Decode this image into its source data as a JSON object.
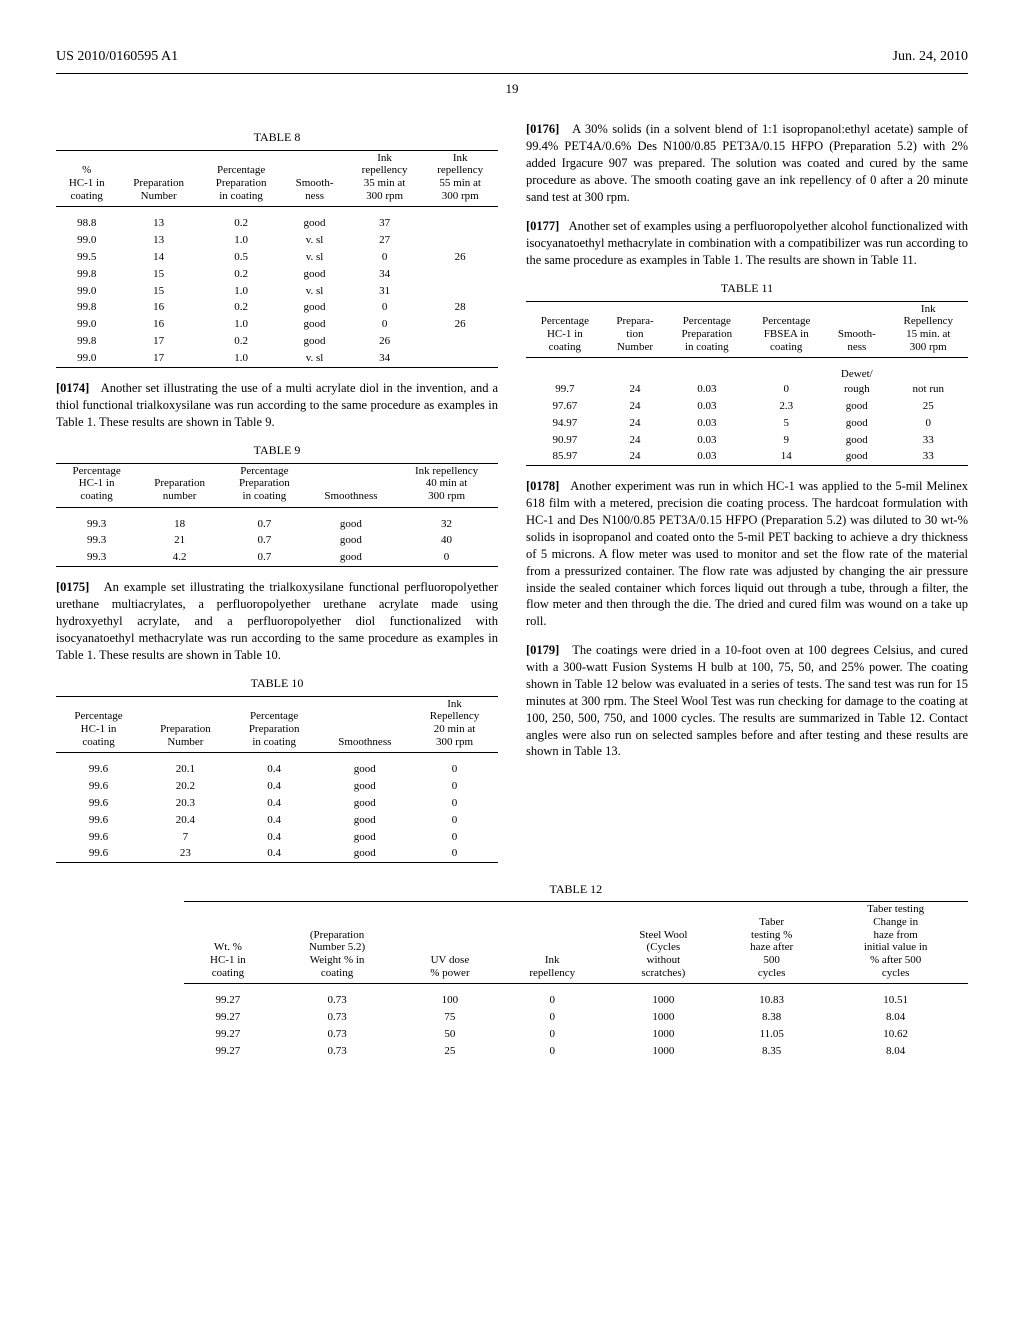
{
  "header": {
    "left": "US 2010/0160595 A1",
    "right": "Jun. 24, 2010"
  },
  "pagenum": "19",
  "table8": {
    "title": "TABLE 8",
    "headers": [
      "%\nHC-1 in\ncoating",
      "Preparation\nNumber",
      "Percentage\nPreparation\nin coating",
      "Smooth-\nness",
      "Ink\nrepellency\n35 min at\n300 rpm",
      "Ink\nrepellency\n55 min at\n300 rpm"
    ],
    "rows": [
      [
        "98.8",
        "13",
        "0.2",
        "good",
        "37",
        ""
      ],
      [
        "99.0",
        "13",
        "1.0",
        "v. sl",
        "27",
        ""
      ],
      [
        "99.5",
        "14",
        "0.5",
        "v. sl",
        "0",
        "26"
      ],
      [
        "99.8",
        "15",
        "0.2",
        "good",
        "34",
        ""
      ],
      [
        "99.0",
        "15",
        "1.0",
        "v. sl",
        "31",
        ""
      ],
      [
        "99.8",
        "16",
        "0.2",
        "good",
        "0",
        "28"
      ],
      [
        "99.0",
        "16",
        "1.0",
        "good",
        "0",
        "26"
      ],
      [
        "99.8",
        "17",
        "0.2",
        "good",
        "26",
        ""
      ],
      [
        "99.0",
        "17",
        "1.0",
        "v. sl",
        "34",
        ""
      ]
    ]
  },
  "para174": {
    "num": "[0174]",
    "text": "Another set illustrating the use of a multi acrylate diol in the invention, and a thiol functional trialkoxysilane was run according to the same procedure as examples in Table 1. These results are shown in Table 9."
  },
  "table9": {
    "title": "TABLE 9",
    "headers": [
      "Percentage\nHC-1 in\ncoating",
      "Preparation\nnumber",
      "Percentage\nPreparation\nin coating",
      "Smoothness",
      "Ink repellency\n40 min at\n300 rpm"
    ],
    "rows": [
      [
        "99.3",
        "18",
        "0.7",
        "good",
        "32"
      ],
      [
        "99.3",
        "21",
        "0.7",
        "good",
        "40"
      ],
      [
        "99.3",
        "4.2",
        "0.7",
        "good",
        "0"
      ]
    ]
  },
  "para175": {
    "num": "[0175]",
    "text": "An example set illustrating the trialkoxysilane functional perfluoropolyether urethane multiacrylates, a perfluoropolyether urethane acrylate made using hydroxyethyl acrylate, and a perfluoropolyether diol functionalized with isocyanatoethyl methacrylate was run according to the same procedure as examples in Table 1. These results are shown in Table 10."
  },
  "table10": {
    "title": "TABLE 10",
    "headers": [
      "Percentage\nHC-1 in\ncoating",
      "Preparation\nNumber",
      "Percentage\nPreparation\nin coating",
      "Smoothness",
      "Ink\nRepellency\n20 min at\n300 rpm"
    ],
    "rows": [
      [
        "99.6",
        "20.1",
        "0.4",
        "good",
        "0"
      ],
      [
        "99.6",
        "20.2",
        "0.4",
        "good",
        "0"
      ],
      [
        "99.6",
        "20.3",
        "0.4",
        "good",
        "0"
      ],
      [
        "99.6",
        "20.4",
        "0.4",
        "good",
        "0"
      ],
      [
        "99.6",
        "7",
        "0.4",
        "good",
        "0"
      ],
      [
        "99.6",
        "23",
        "0.4",
        "good",
        "0"
      ]
    ]
  },
  "para176": {
    "num": "[0176]",
    "text": "A 30% solids (in a solvent blend of 1:1 isopropanol:ethyl acetate) sample of 99.4% PET4A/0.6% Des N100/0.85 PET3A/0.15 HFPO (Preparation 5.2) with 2% added Irgacure 907 was prepared. The solution was coated and cured by the same procedure as above. The smooth coating gave an ink repellency of 0 after a 20 minute sand test at 300 rpm."
  },
  "para177": {
    "num": "[0177]",
    "text": "Another set of examples using a perfluoropolyether alcohol functionalized with isocyanatoethyl methacrylate in combination with a compatibilizer was run according to the same procedure as examples in Table 1. The results are shown in Table 11."
  },
  "table11": {
    "title": "TABLE 11",
    "headers": [
      "Percentage\nHC-1 in\ncoating",
      "Prepara-\ntion\nNumber",
      "Percentage\nPreparation\nin coating",
      "Percentage\nFBSEA in\ncoating",
      "Smooth-\nness",
      "Ink\nRepellency\n15 min. at\n300 rpm"
    ],
    "rows": [
      [
        "99.7",
        "24",
        "0.03",
        "0",
        "Dewet/\nrough",
        "not run"
      ],
      [
        "97.67",
        "24",
        "0.03",
        "2.3",
        "good",
        "25"
      ],
      [
        "94.97",
        "24",
        "0.03",
        "5",
        "good",
        "0"
      ],
      [
        "90.97",
        "24",
        "0.03",
        "9",
        "good",
        "33"
      ],
      [
        "85.97",
        "24",
        "0.03",
        "14",
        "good",
        "33"
      ]
    ]
  },
  "para178": {
    "num": "[0178]",
    "text": "Another experiment was run in which HC-1 was applied to the 5-mil Melinex 618 film with a metered, precision die coating process. The hardcoat formulation with HC-1 and Des N100/0.85 PET3A/0.15 HFPO (Preparation 5.2) was diluted to 30 wt-% solids in isopropanol and coated onto the 5-mil PET backing to achieve a dry thickness of 5 microns. A flow meter was used to monitor and set the flow rate of the material from a pressurized container. The flow rate was adjusted by changing the air pressure inside the sealed container which forces liquid out through a tube, through a filter, the flow meter and then through the die. The dried and cured film was wound on a take up roll."
  },
  "para179": {
    "num": "[0179]",
    "text": "The coatings were dried in a 10-foot oven at 100 degrees Celsius, and cured with a 300-watt Fusion Systems H bulb at 100, 75, 50, and 25% power. The coating shown in Table 12 below was evaluated in a series of tests. The sand test was run for 15 minutes at 300 rpm. The Steel Wool Test was run checking for damage to the coating at 100, 250, 500, 750, and 1000 cycles. The results are summarized in Table 12. Contact angles were also run on selected samples before and after testing and these results are shown in Table 13."
  },
  "table12": {
    "title": "TABLE 12",
    "headers": [
      "Wt. %\nHC-1 in\ncoating",
      "(Preparation\nNumber 5.2)\nWeight % in\ncoating",
      "UV dose\n% power",
      "Ink\nrepellency",
      "Steel Wool\n(Cycles\nwithout\nscratches)",
      "Taber\ntesting %\nhaze after\n500\ncycles",
      "Taber testing\nChange in\nhaze from\ninitial value in\n% after 500\ncycles"
    ],
    "rows": [
      [
        "99.27",
        "0.73",
        "100",
        "0",
        "1000",
        "10.83",
        "10.51"
      ],
      [
        "99.27",
        "0.73",
        "75",
        "0",
        "1000",
        "8.38",
        "8.04"
      ],
      [
        "99.27",
        "0.73",
        "50",
        "0",
        "1000",
        "11.05",
        "10.62"
      ],
      [
        "99.27",
        "0.73",
        "25",
        "0",
        "1000",
        "8.35",
        "8.04"
      ]
    ]
  }
}
